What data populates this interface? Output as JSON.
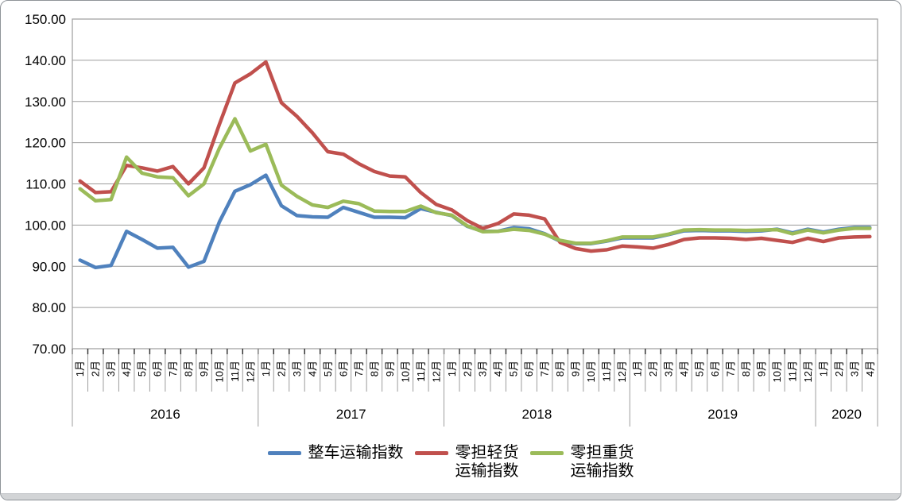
{
  "chart_data": {
    "type": "line",
    "title": "",
    "grid": true,
    "legend_position": "bottom",
    "ylim": [
      70,
      150
    ],
    "y_tick_step": 10,
    "y_tick_labels": [
      "150.00",
      "140.00",
      "130.00",
      "120.00",
      "110.00",
      "100.00",
      "90.00",
      "80.00",
      "70.00"
    ],
    "month_suffix": "月",
    "years": [
      {
        "label": "2016",
        "months": 12
      },
      {
        "label": "2017",
        "months": 12
      },
      {
        "label": "2018",
        "months": 12
      },
      {
        "label": "2019",
        "months": 12
      },
      {
        "label": "2020",
        "months": 4
      }
    ],
    "x_categories_note": "months 1月-12月 per year, 2020 ends at 4月",
    "series": [
      {
        "name": "整车运输指数",
        "legend_lines": [
          "整车运输指数"
        ],
        "color": "#4F81BD",
        "values": [
          91.5,
          89.7,
          90.2,
          98.5,
          96.5,
          94.4,
          94.6,
          89.8,
          91.2,
          100.8,
          108.2,
          109.8,
          112.1,
          104.7,
          102.3,
          102.0,
          101.9,
          104.3,
          103.1,
          101.9,
          101.9,
          101.8,
          104.0,
          103.1,
          102.3,
          99.7,
          98.5,
          98.5,
          99.4,
          99.1,
          97.9,
          96.1,
          95.5,
          95.5,
          96.1,
          96.9,
          96.9,
          96.9,
          97.7,
          98.6,
          98.7,
          98.6,
          98.6,
          98.5,
          98.6,
          99.0,
          98.1,
          99.0,
          98.3,
          99.0,
          99.4,
          99.4
        ]
      },
      {
        "name": "零担轻货运输指数",
        "legend_lines": [
          "零担轻货",
          "运输指数"
        ],
        "color": "#C0504D",
        "values": [
          110.7,
          107.9,
          108.1,
          114.5,
          113.9,
          113.1,
          114.2,
          110.0,
          113.9,
          124.5,
          134.5,
          136.7,
          139.6,
          129.7,
          126.4,
          122.4,
          117.8,
          117.2,
          114.9,
          113.0,
          111.9,
          111.7,
          107.9,
          105.0,
          103.7,
          101.1,
          99.2,
          100.4,
          102.7,
          102.4,
          101.5,
          95.8,
          94.3,
          93.7,
          94.0,
          94.9,
          94.7,
          94.4,
          95.3,
          96.5,
          96.9,
          96.9,
          96.8,
          96.5,
          96.8,
          96.3,
          95.8,
          96.8,
          96.0,
          96.9,
          97.1,
          97.2
        ]
      },
      {
        "name": "零担重货运输指数",
        "legend_lines": [
          "零担重货",
          "运输指数"
        ],
        "color": "#9BBB59",
        "values": [
          108.8,
          105.9,
          106.2,
          116.5,
          112.6,
          111.7,
          111.5,
          107.1,
          110.0,
          118.7,
          125.8,
          118.0,
          119.6,
          109.7,
          107.0,
          104.9,
          104.3,
          105.8,
          105.2,
          103.4,
          103.3,
          103.3,
          104.6,
          103.0,
          102.4,
          99.8,
          98.4,
          98.5,
          99.0,
          98.7,
          97.8,
          96.3,
          95.6,
          95.6,
          96.2,
          97.1,
          97.1,
          97.1,
          97.8,
          98.8,
          98.9,
          98.8,
          98.8,
          98.7,
          98.8,
          98.9,
          97.9,
          98.8,
          98.1,
          98.8,
          99.2,
          99.2
        ]
      }
    ],
    "style": {
      "grid_color": "#9c9c9c",
      "tick_color": "#2b2b2b",
      "label_color": "#000000",
      "line_width": 4.5
    }
  }
}
